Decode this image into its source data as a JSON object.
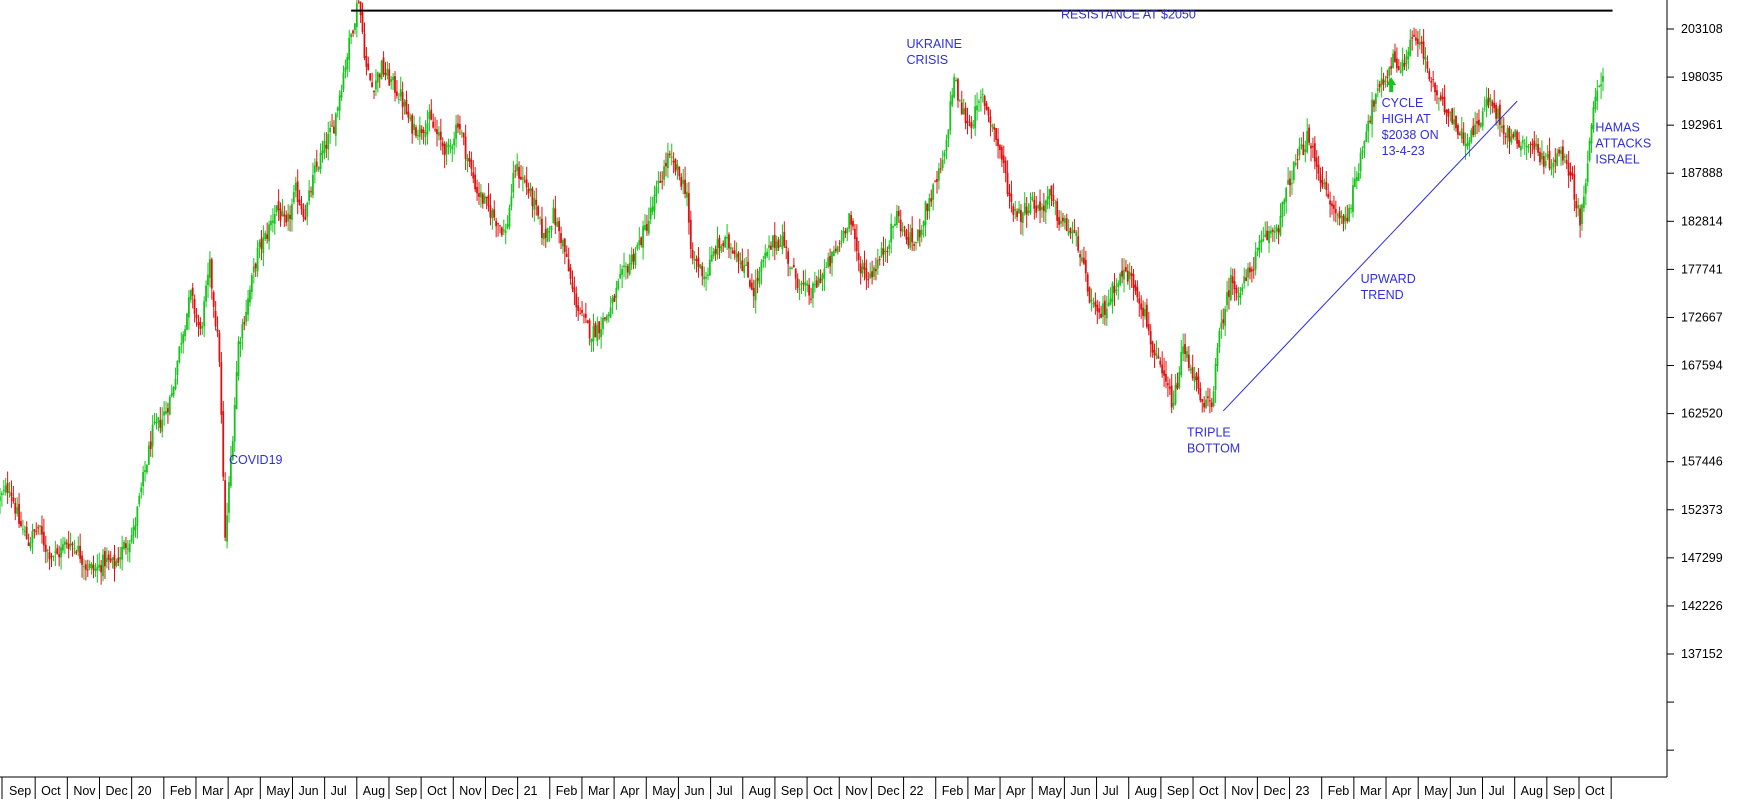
{
  "colors": {
    "up": "#16c41b",
    "down": "#e01010",
    "annotation": "#2f2fe0",
    "axis": "#000000"
  },
  "chart_data": {
    "type": "candlestick",
    "y_ticks": [
      203108,
      198035,
      192961,
      187888,
      182814,
      177741,
      172667,
      167594,
      162520,
      157446,
      152373,
      147299,
      142226,
      137152
    ],
    "x_ticks": [
      "Sep",
      "Oct",
      "Nov",
      "Dec",
      "20",
      "Feb",
      "Mar",
      "Apr",
      "May",
      "Jun",
      "Jul",
      "Aug",
      "Sep",
      "Oct",
      "Nov",
      "Dec",
      "21",
      "Feb",
      "Mar",
      "Apr",
      "May",
      "Jun",
      "Jul",
      "Aug",
      "Sep",
      "Oct",
      "Nov",
      "Dec",
      "22",
      "Feb",
      "Mar",
      "Apr",
      "May",
      "Jun",
      "Jul",
      "Aug",
      "Sep",
      "Oct",
      "Nov",
      "Dec",
      "23",
      "Feb",
      "Mar",
      "Apr",
      "May",
      "Jun",
      "Jul",
      "Aug",
      "Sep",
      "Oct"
    ],
    "close_path": [
      [
        0,
        153500
      ],
      [
        5,
        155000
      ],
      [
        10,
        151000
      ],
      [
        15,
        149000
      ],
      [
        20,
        150500
      ],
      [
        25,
        148000
      ],
      [
        30,
        147500
      ],
      [
        35,
        149000
      ],
      [
        40,
        148500
      ],
      [
        45,
        146500
      ],
      [
        50,
        146000
      ],
      [
        55,
        147000
      ],
      [
        60,
        146500
      ],
      [
        65,
        148500
      ],
      [
        70,
        150000
      ],
      [
        75,
        155500
      ],
      [
        80,
        160500
      ],
      [
        85,
        162000
      ],
      [
        90,
        164500
      ],
      [
        95,
        170500
      ],
      [
        100,
        175000
      ],
      [
        105,
        171000
      ],
      [
        110,
        178000
      ],
      [
        115,
        168500
      ],
      [
        118,
        149000
      ],
      [
        122,
        160500
      ],
      [
        125,
        170000
      ],
      [
        130,
        174500
      ],
      [
        135,
        179500
      ],
      [
        140,
        181500
      ],
      [
        145,
        184500
      ],
      [
        150,
        182000
      ],
      [
        155,
        186000
      ],
      [
        160,
        183500
      ],
      [
        165,
        188000
      ],
      [
        170,
        190500
      ],
      [
        175,
        193000
      ],
      [
        180,
        198500
      ],
      [
        185,
        203500
      ],
      [
        188,
        206500
      ],
      [
        192,
        199000
      ],
      [
        195,
        197000
      ],
      [
        200,
        199000
      ],
      [
        205,
        197500
      ],
      [
        210,
        196000
      ],
      [
        215,
        193000
      ],
      [
        220,
        192500
      ],
      [
        225,
        193500
      ],
      [
        230,
        191500
      ],
      [
        235,
        190000
      ],
      [
        240,
        193500
      ],
      [
        245,
        189500
      ],
      [
        250,
        186000
      ],
      [
        255,
        184500
      ],
      [
        260,
        183000
      ],
      [
        265,
        181500
      ],
      [
        270,
        188500
      ],
      [
        275,
        187000
      ],
      [
        280,
        184500
      ],
      [
        285,
        181000
      ],
      [
        290,
        183500
      ],
      [
        295,
        180500
      ],
      [
        300,
        175500
      ],
      [
        305,
        172500
      ],
      [
        310,
        171000
      ],
      [
        315,
        172000
      ],
      [
        320,
        173500
      ],
      [
        325,
        176500
      ],
      [
        330,
        178500
      ],
      [
        335,
        180500
      ],
      [
        340,
        183000
      ],
      [
        345,
        186500
      ],
      [
        350,
        189500
      ],
      [
        355,
        188000
      ],
      [
        360,
        186000
      ],
      [
        362,
        179000
      ],
      [
        365,
        178500
      ],
      [
        370,
        177000
      ],
      [
        375,
        180000
      ],
      [
        380,
        180500
      ],
      [
        385,
        180000
      ],
      [
        390,
        178000
      ],
      [
        395,
        175500
      ],
      [
        400,
        178500
      ],
      [
        405,
        180500
      ],
      [
        410,
        181000
      ],
      [
        415,
        177500
      ],
      [
        420,
        176000
      ],
      [
        425,
        175000
      ],
      [
        430,
        177000
      ],
      [
        435,
        178500
      ],
      [
        440,
        180500
      ],
      [
        445,
        183500
      ],
      [
        450,
        178500
      ],
      [
        455,
        177000
      ],
      [
        460,
        178500
      ],
      [
        465,
        180500
      ],
      [
        470,
        183500
      ],
      [
        475,
        181000
      ],
      [
        480,
        180500
      ],
      [
        485,
        184000
      ],
      [
        490,
        186500
      ],
      [
        495,
        189500
      ],
      [
        498,
        195000
      ],
      [
        500,
        198000
      ],
      [
        503,
        195000
      ],
      [
        508,
        193000
      ],
      [
        512,
        194500
      ],
      [
        515,
        196000
      ],
      [
        520,
        193000
      ],
      [
        525,
        189500
      ],
      [
        530,
        184500
      ],
      [
        535,
        183500
      ],
      [
        540,
        185000
      ],
      [
        545,
        184000
      ],
      [
        550,
        185500
      ],
      [
        555,
        183000
      ],
      [
        560,
        182000
      ],
      [
        565,
        180500
      ],
      [
        570,
        175500
      ],
      [
        575,
        172500
      ],
      [
        580,
        174000
      ],
      [
        585,
        176500
      ],
      [
        590,
        177500
      ],
      [
        595,
        176000
      ],
      [
        600,
        173000
      ],
      [
        605,
        168500
      ],
      [
        610,
        166000
      ],
      [
        615,
        163500
      ],
      [
        620,
        169500
      ],
      [
        625,
        167000
      ],
      [
        630,
        163000
      ],
      [
        635,
        164000
      ],
      [
        640,
        172000
      ],
      [
        645,
        176500
      ],
      [
        650,
        175500
      ],
      [
        655,
        177500
      ],
      [
        660,
        180000
      ],
      [
        665,
        181500
      ],
      [
        670,
        182500
      ],
      [
        675,
        186500
      ],
      [
        680,
        189500
      ],
      [
        685,
        191500
      ],
      [
        690,
        189000
      ],
      [
        695,
        185500
      ],
      [
        700,
        183500
      ],
      [
        705,
        183000
      ],
      [
        710,
        186500
      ],
      [
        715,
        192000
      ],
      [
        720,
        195500
      ],
      [
        725,
        197500
      ],
      [
        730,
        200000
      ],
      [
        735,
        199000
      ],
      [
        740,
        202500
      ],
      [
        745,
        201000
      ],
      [
        750,
        197500
      ],
      [
        755,
        195000
      ],
      [
        760,
        194500
      ],
      [
        765,
        192000
      ],
      [
        770,
        191500
      ],
      [
        775,
        193500
      ],
      [
        780,
        195500
      ],
      [
        785,
        194000
      ],
      [
        790,
        192000
      ],
      [
        795,
        191500
      ],
      [
        800,
        191000
      ],
      [
        805,
        190500
      ],
      [
        810,
        189000
      ],
      [
        815,
        189500
      ],
      [
        820,
        190000
      ],
      [
        825,
        186000
      ],
      [
        828,
        183000
      ],
      [
        832,
        188500
      ],
      [
        835,
        194500
      ],
      [
        838,
        197500
      ],
      [
        840,
        198500
      ]
    ],
    "resistance": 205050,
    "trendline": [
      [
        641,
        162800
      ],
      [
        795,
        195500
      ]
    ],
    "annotations": [
      {
        "label": "COVID19",
        "lines": [
          "COVID19"
        ],
        "x": 120,
        "y": 157200
      },
      {
        "label": "UKRAINE CRISIS",
        "lines": [
          "UKRAINE",
          "CRISIS"
        ],
        "x": 475,
        "y": 201100
      },
      {
        "label": "RESISTANCE AT $2050",
        "lines": [
          "RESISTANCE AT $2050"
        ],
        "x": 556,
        "y": 204200
      },
      {
        "label": "TRIPLE BOTTOM",
        "lines": [
          "TRIPLE",
          "BOTTOM"
        ],
        "x": 622,
        "y": 160100
      },
      {
        "label": "UPWARD TREND",
        "lines": [
          "UPWARD",
          "TREND"
        ],
        "x": 713,
        "y": 176300
      },
      {
        "label": "CYCLE HIGH AT $2038 ON 13-4-23",
        "lines": [
          "CYCLE",
          "HIGH AT",
          "$2038 ON",
          "13-4-23"
        ],
        "x": 724,
        "y": 194900
      },
      {
        "label": "HAMAS ATTACKS ISRAEL",
        "lines": [
          "HAMAS",
          "ATTACKS",
          "ISRAEL"
        ],
        "x": 836,
        "y": 192300
      }
    ]
  }
}
